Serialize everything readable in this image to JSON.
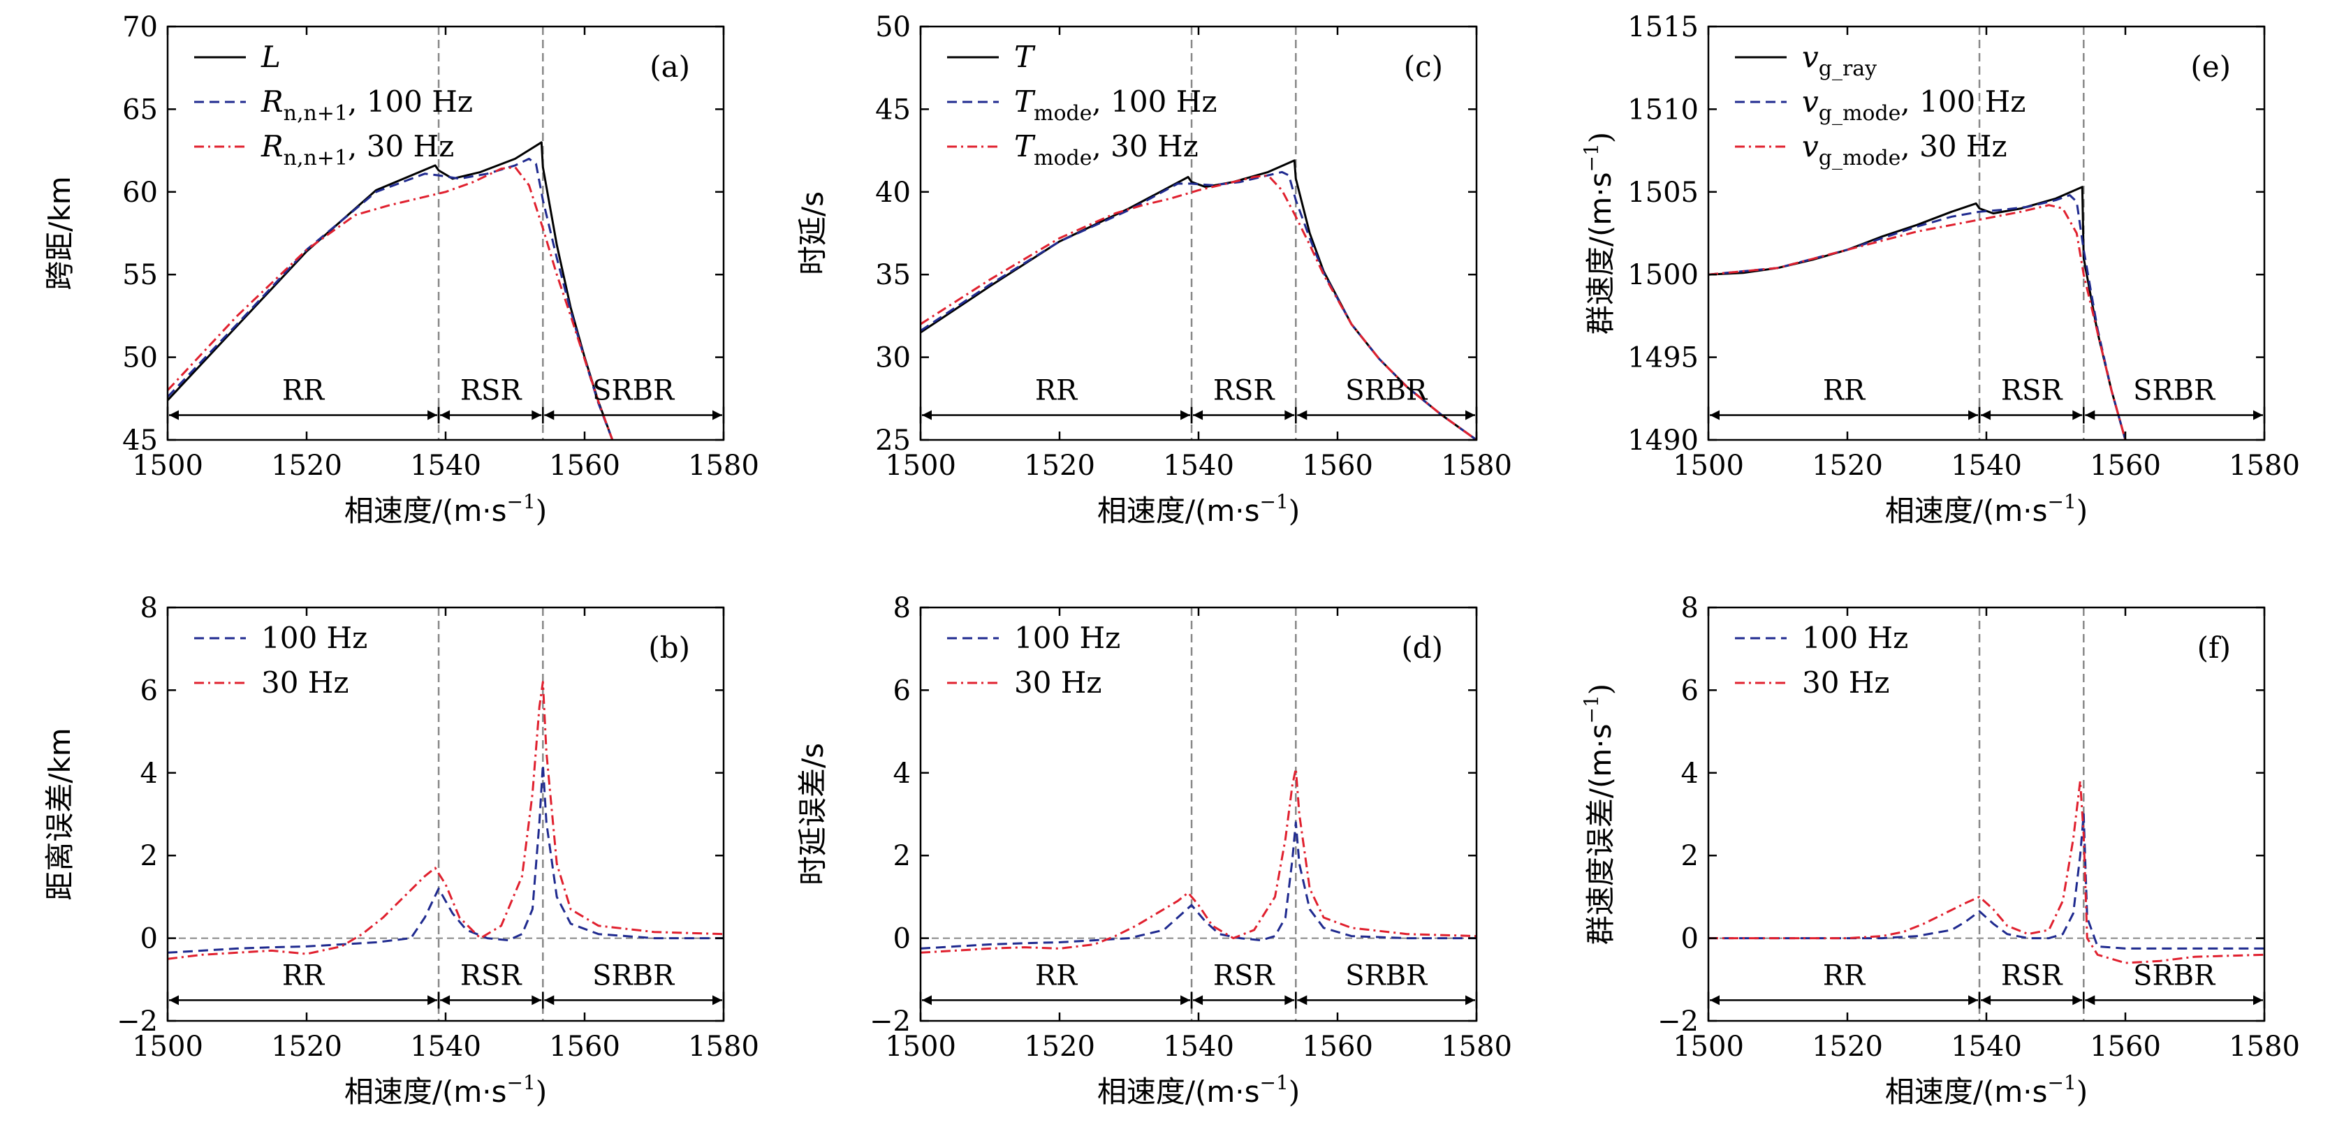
{
  "figure": {
    "regions": [
      "RR",
      "RSR",
      "SRBR"
    ],
    "x_axis_label": "相速度/(m·s",
    "x_axis_label_exp": "−1",
    "x_axis_label_close": ")"
  },
  "colors": {
    "ray": "#000000",
    "hz100": "#1f2a8f",
    "hz30": "#e0202e",
    "guide": "#888888"
  },
  "chart_data": [
    {
      "id": "a",
      "panel_label": "(a)",
      "type": "line",
      "ylabel": "跨距/km",
      "xlim": [
        1500,
        1580
      ],
      "ylim": [
        45,
        70
      ],
      "xticks": [
        1500,
        1520,
        1540,
        1560,
        1580
      ],
      "yticks": [
        45,
        50,
        55,
        60,
        65,
        70
      ],
      "vlines": [
        1539,
        1554
      ],
      "legend": [
        {
          "main": "L",
          "sub": "",
          "rest": "",
          "italic": true
        },
        {
          "main": "R",
          "sub": "n,n+1",
          "rest": ", 100 Hz",
          "italic": true
        },
        {
          "main": "R",
          "sub": "n,n+1",
          "rest": ", 30 Hz",
          "italic": true
        }
      ],
      "regions_y": 46.5,
      "series": [
        {
          "name": "L",
          "style": "ray",
          "x": [
            1500,
            1510,
            1520,
            1530,
            1538.5,
            1539,
            1541,
            1545,
            1550,
            1553.8,
            1554,
            1556,
            1558,
            1560,
            1562,
            1564
          ],
          "y": [
            47.4,
            51.9,
            56.4,
            60.1,
            61.6,
            61.3,
            60.8,
            61.2,
            62.0,
            63.0,
            61.5,
            56.8,
            53.0,
            50.0,
            47.3,
            45.0
          ]
        },
        {
          "name": "100 Hz",
          "style": "hz100",
          "x": [
            1500,
            1510,
            1520,
            1530,
            1537,
            1539,
            1542,
            1546,
            1550,
            1552,
            1553,
            1554,
            1556,
            1558,
            1560,
            1562,
            1564
          ],
          "y": [
            47.6,
            52.0,
            56.5,
            60.0,
            61.1,
            61.0,
            60.8,
            61.1,
            61.6,
            62.0,
            61.7,
            59.5,
            56.0,
            52.8,
            49.9,
            47.2,
            45.0
          ]
        },
        {
          "name": "30 Hz",
          "style": "hz30",
          "x": [
            1500,
            1510,
            1520,
            1527,
            1532,
            1536,
            1540,
            1544,
            1548,
            1550,
            1552,
            1554,
            1556,
            1558,
            1560,
            1562,
            1564
          ],
          "y": [
            48.0,
            52.5,
            56.5,
            58.6,
            59.2,
            59.6,
            60.0,
            60.6,
            61.4,
            61.5,
            60.4,
            57.8,
            55.0,
            52.5,
            49.9,
            47.3,
            45.0
          ]
        }
      ]
    },
    {
      "id": "c",
      "panel_label": "(c)",
      "type": "line",
      "ylabel": "时延/s",
      "xlim": [
        1500,
        1580
      ],
      "ylim": [
        25,
        50
      ],
      "xticks": [
        1500,
        1520,
        1540,
        1560,
        1580
      ],
      "yticks": [
        25,
        30,
        35,
        40,
        45,
        50
      ],
      "vlines": [
        1539,
        1554
      ],
      "legend": [
        {
          "main": "T",
          "sub": "",
          "rest": "",
          "italic": true
        },
        {
          "main": "T",
          "sub": "mode",
          "rest": ", 100 Hz",
          "italic": true
        },
        {
          "main": "T",
          "sub": "mode",
          "rest": ", 30 Hz",
          "italic": true
        }
      ],
      "regions_y": 26.5,
      "series": [
        {
          "name": "T",
          "style": "ray",
          "x": [
            1500,
            1510,
            1520,
            1530,
            1538.5,
            1539,
            1541,
            1545,
            1550,
            1553.8,
            1554,
            1556,
            1558,
            1562,
            1566,
            1570,
            1575,
            1580
          ],
          "y": [
            31.5,
            34.3,
            37.0,
            39.0,
            40.9,
            40.6,
            40.3,
            40.6,
            41.2,
            41.9,
            40.8,
            37.5,
            35.2,
            32.0,
            29.9,
            28.2,
            26.5,
            25.0
          ]
        },
        {
          "name": "100 Hz",
          "style": "hz100",
          "x": [
            1500,
            1510,
            1520,
            1530,
            1537,
            1539,
            1542,
            1546,
            1550,
            1552,
            1553,
            1554,
            1556,
            1558,
            1562,
            1566,
            1570,
            1575,
            1580
          ],
          "y": [
            31.6,
            34.4,
            37.0,
            38.9,
            40.5,
            40.5,
            40.4,
            40.6,
            41.0,
            41.2,
            41.0,
            39.5,
            37.2,
            35.1,
            32.0,
            29.9,
            28.2,
            26.5,
            25.0
          ]
        },
        {
          "name": "30 Hz",
          "style": "hz30",
          "x": [
            1500,
            1510,
            1520,
            1528,
            1532,
            1536,
            1540,
            1544,
            1548,
            1550,
            1552,
            1554,
            1556,
            1558,
            1562,
            1566,
            1570,
            1575,
            1580
          ],
          "y": [
            32.0,
            34.7,
            37.2,
            38.7,
            39.2,
            39.6,
            40.1,
            40.5,
            40.9,
            41.0,
            40.1,
            38.5,
            36.8,
            35.0,
            32.0,
            29.9,
            28.2,
            26.5,
            25.0
          ]
        }
      ]
    },
    {
      "id": "e",
      "panel_label": "(e)",
      "type": "line",
      "ylabel": "群速度/(m·s",
      "ylabel_exp": "−1",
      "ylabel_close": ")",
      "xlim": [
        1500,
        1580
      ],
      "ylim": [
        1490,
        1515
      ],
      "xticks": [
        1500,
        1520,
        1540,
        1560,
        1580
      ],
      "yticks": [
        1490,
        1495,
        1500,
        1505,
        1510,
        1515
      ],
      "vlines": [
        1539,
        1554
      ],
      "legend": [
        {
          "main": "v",
          "sub": "g_ray",
          "rest": "",
          "italic": true
        },
        {
          "main": "v",
          "sub": "g_mode",
          "rest": ", 100 Hz",
          "italic": true
        },
        {
          "main": "v",
          "sub": "g_mode",
          "rest": ", 30 Hz",
          "italic": true
        }
      ],
      "regions_y": 1491.5,
      "series": [
        {
          "name": "vg_ray",
          "style": "ray",
          "x": [
            1500,
            1505,
            1510,
            1515,
            1520,
            1525,
            1530,
            1535,
            1538.5,
            1539,
            1541,
            1545,
            1550,
            1553.8,
            1554,
            1556,
            1558,
            1560
          ],
          "y": [
            1500.0,
            1500.1,
            1500.4,
            1500.9,
            1501.5,
            1502.3,
            1503.0,
            1503.8,
            1504.3,
            1504.0,
            1503.7,
            1504.0,
            1504.6,
            1505.3,
            1501.0,
            1496.5,
            1493.0,
            1490.0
          ]
        },
        {
          "name": "100 Hz",
          "style": "hz100",
          "x": [
            1500,
            1510,
            1520,
            1530,
            1535,
            1539,
            1542,
            1546,
            1550,
            1552,
            1553,
            1554,
            1556,
            1558,
            1560
          ],
          "y": [
            1500.0,
            1500.4,
            1501.5,
            1502.9,
            1503.5,
            1503.8,
            1503.9,
            1504.1,
            1504.5,
            1504.8,
            1504.4,
            1501.5,
            1496.7,
            1493.0,
            1490.0
          ]
        },
        {
          "name": "30 Hz",
          "style": "hz30",
          "x": [
            1500,
            1510,
            1520,
            1530,
            1535,
            1540,
            1545,
            1549,
            1551,
            1553,
            1554,
            1556,
            1558,
            1560
          ],
          "y": [
            1500.0,
            1500.4,
            1501.5,
            1502.6,
            1503.0,
            1503.4,
            1503.8,
            1504.2,
            1504.0,
            1502.5,
            1500.0,
            1496.5,
            1493.0,
            1490.0
          ]
        }
      ]
    },
    {
      "id": "b",
      "panel_label": "(b)",
      "type": "line",
      "ylabel": "距离误差/km",
      "xlim": [
        1500,
        1580
      ],
      "ylim": [
        -2,
        8
      ],
      "xticks": [
        1500,
        1520,
        1540,
        1560,
        1580
      ],
      "yticks": [
        -2,
        0,
        2,
        4,
        6,
        8
      ],
      "vlines": [
        1539,
        1554
      ],
      "hline": 0,
      "legend": [
        {
          "main": "",
          "sub": "",
          "rest": "100 Hz",
          "italic": false
        },
        {
          "main": "",
          "sub": "",
          "rest": "30 Hz",
          "italic": false
        }
      ],
      "regions_y": -1.5,
      "series": [
        {
          "name": "100 Hz",
          "style": "hz100",
          "x": [
            1500,
            1505,
            1510,
            1515,
            1520,
            1525,
            1530,
            1535,
            1537,
            1539,
            1541,
            1543,
            1546,
            1549,
            1551,
            1552.5,
            1553.5,
            1554,
            1554.5,
            1556,
            1558,
            1562,
            1570,
            1580
          ],
          "y": [
            -0.35,
            -0.3,
            -0.25,
            -0.22,
            -0.2,
            -0.15,
            -0.1,
            0.0,
            0.5,
            1.2,
            0.6,
            0.2,
            0.0,
            -0.05,
            0.1,
            0.7,
            2.8,
            4.2,
            2.8,
            1.0,
            0.35,
            0.1,
            0.0,
            0.0
          ]
        },
        {
          "name": "30 Hz",
          "style": "hz30",
          "x": [
            1500,
            1505,
            1510,
            1515,
            1520,
            1525,
            1528,
            1531,
            1534,
            1537,
            1538.5,
            1540,
            1542,
            1545,
            1548,
            1551,
            1552.5,
            1553.5,
            1554,
            1554.5,
            1556,
            1558,
            1562,
            1570,
            1580
          ],
          "y": [
            -0.5,
            -0.4,
            -0.35,
            -0.3,
            -0.38,
            -0.2,
            0.1,
            0.5,
            1.0,
            1.5,
            1.7,
            1.3,
            0.5,
            0.0,
            0.3,
            1.5,
            3.5,
            5.6,
            6.2,
            4.5,
            1.8,
            0.7,
            0.3,
            0.15,
            0.1
          ]
        }
      ]
    },
    {
      "id": "d",
      "panel_label": "(d)",
      "type": "line",
      "ylabel": "时延误差/s",
      "xlim": [
        1500,
        1580
      ],
      "ylim": [
        -2,
        8
      ],
      "xticks": [
        1500,
        1520,
        1540,
        1560,
        1580
      ],
      "yticks": [
        -2,
        0,
        2,
        4,
        6,
        8
      ],
      "vlines": [
        1539,
        1554
      ],
      "hline": 0,
      "legend": [
        {
          "main": "",
          "sub": "",
          "rest": "100 Hz",
          "italic": false
        },
        {
          "main": "",
          "sub": "",
          "rest": "30 Hz",
          "italic": false
        }
      ],
      "regions_y": -1.5,
      "series": [
        {
          "name": "100 Hz",
          "style": "hz100",
          "x": [
            1500,
            1505,
            1510,
            1515,
            1520,
            1525,
            1530,
            1535,
            1537,
            1539,
            1541,
            1543,
            1546,
            1549,
            1551,
            1552.5,
            1553.5,
            1554,
            1554.5,
            1556,
            1558,
            1562,
            1570,
            1580
          ],
          "y": [
            -0.25,
            -0.2,
            -0.15,
            -0.12,
            -0.1,
            -0.05,
            0.0,
            0.2,
            0.5,
            0.8,
            0.4,
            0.1,
            0.0,
            -0.05,
            0.05,
            0.5,
            1.9,
            2.8,
            1.8,
            0.7,
            0.25,
            0.05,
            0.0,
            0.0
          ]
        },
        {
          "name": "30 Hz",
          "style": "hz30",
          "x": [
            1500,
            1505,
            1510,
            1515,
            1520,
            1525,
            1528,
            1531,
            1534,
            1537,
            1538.5,
            1540,
            1542,
            1545,
            1548,
            1551,
            1552.5,
            1553.5,
            1554,
            1554.5,
            1556,
            1558,
            1562,
            1570,
            1580
          ],
          "y": [
            -0.35,
            -0.3,
            -0.25,
            -0.22,
            -0.25,
            -0.15,
            0.05,
            0.3,
            0.6,
            0.9,
            1.1,
            0.8,
            0.3,
            0.0,
            0.2,
            1.0,
            2.4,
            3.7,
            4.1,
            3.0,
            1.2,
            0.5,
            0.25,
            0.1,
            0.05
          ]
        }
      ]
    },
    {
      "id": "f",
      "panel_label": "(f)",
      "type": "line",
      "ylabel": "群速度误差/(m·s",
      "ylabel_exp": "−1",
      "ylabel_close": ")",
      "xlim": [
        1500,
        1580
      ],
      "ylim": [
        -2,
        8
      ],
      "xticks": [
        1500,
        1520,
        1540,
        1560,
        1580
      ],
      "yticks": [
        -2,
        0,
        2,
        4,
        6,
        8
      ],
      "vlines": [
        1539,
        1554
      ],
      "hline": 0,
      "legend": [
        {
          "main": "",
          "sub": "",
          "rest": "100 Hz",
          "italic": false
        },
        {
          "main": "",
          "sub": "",
          "rest": "30 Hz",
          "italic": false
        }
      ],
      "regions_y": -1.5,
      "series": [
        {
          "name": "100 Hz",
          "style": "hz100",
          "x": [
            1500,
            1510,
            1520,
            1525,
            1530,
            1535,
            1537,
            1539,
            1541,
            1543,
            1546,
            1549,
            1551,
            1552.5,
            1553.5,
            1554,
            1554.5,
            1556,
            1560,
            1570,
            1580
          ],
          "y": [
            0.0,
            0.0,
            0.0,
            0.0,
            0.05,
            0.2,
            0.4,
            0.65,
            0.35,
            0.1,
            0.0,
            0.0,
            0.1,
            0.6,
            2.0,
            3.0,
            0.5,
            -0.2,
            -0.25,
            -0.25,
            -0.25
          ]
        },
        {
          "name": "30 Hz",
          "style": "hz30",
          "x": [
            1500,
            1510,
            1520,
            1525,
            1528,
            1531,
            1534,
            1537,
            1539,
            1541,
            1543,
            1546,
            1549,
            1551,
            1552.5,
            1553.5,
            1554,
            1554.5,
            1556,
            1560,
            1565,
            1570,
            1580
          ],
          "y": [
            0.0,
            0.0,
            0.0,
            0.05,
            0.15,
            0.35,
            0.6,
            0.85,
            1.0,
            0.7,
            0.3,
            0.1,
            0.2,
            0.9,
            2.4,
            3.8,
            2.5,
            0.0,
            -0.4,
            -0.6,
            -0.55,
            -0.45,
            -0.4
          ]
        }
      ]
    }
  ]
}
